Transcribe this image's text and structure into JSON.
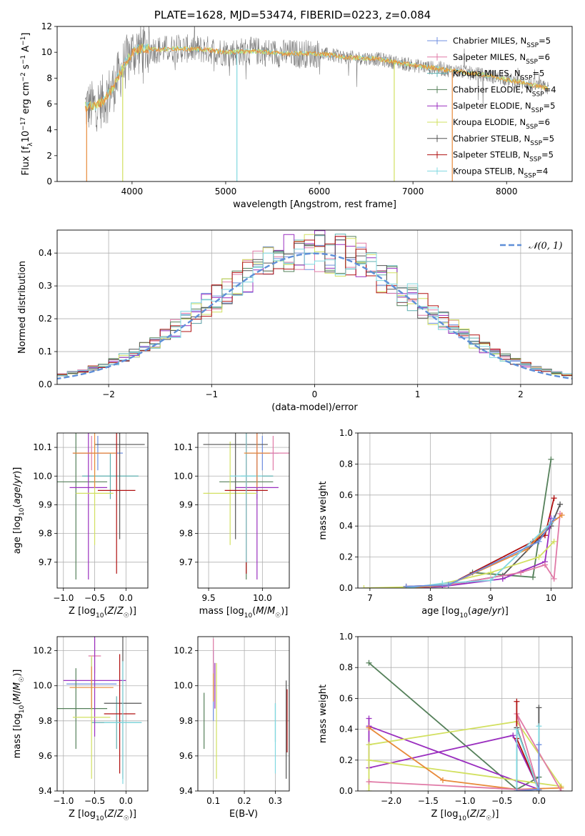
{
  "figure": {
    "title": "PLATE=1628, MJD=53474, FIBERID=0223, z=0.084"
  },
  "colors": {
    "Chabrier MILES": "#6f8fe0",
    "Salpeter MILES": "#e07aa7",
    "Kroupa MILES": "#5fb0b0",
    "Chabrier ELODIE": "#55805a",
    "Salpeter ELODIE": "#9a2fbf",
    "Kroupa ELODIE": "#d2e060",
    "Chabrier STELIB": "#555555",
    "Salpeter STELIB": "#b01010",
    "Kroupa STELIB": "#80d8e0",
    "orange_model": "#e88a3a",
    "data_grey": "#7a7a7a",
    "normal_curve": "#5f8fd8"
  },
  "chart_data": [
    {
      "type": "line",
      "title": "PLATE=1628, MJD=53474, FIBERID=0223, z=0.084",
      "xlabel": "wavelength [Angstrom, rest frame]",
      "ylabel": "Flux [fλ10⁻¹⁷ erg cm⁻² s⁻¹ A⁻¹]",
      "xlim": [
        3200,
        8700
      ],
      "ylim": [
        0,
        12
      ],
      "xticks": [
        4000,
        5000,
        6000,
        7000,
        8000
      ],
      "yticks": [
        0,
        2,
        4,
        6,
        8,
        10,
        12
      ],
      "legend_position": "top-right",
      "legend": [
        {
          "label": "Chabrier MILES, N",
          "sub": "SSP",
          "tail": "=5",
          "key": "Chabrier MILES"
        },
        {
          "label": "Salpeter MILES, N",
          "sub": "SSP",
          "tail": "=6",
          "key": "Salpeter MILES"
        },
        {
          "label": "Kroupa MILES, N",
          "sub": "SSP",
          "tail": "=5",
          "key": "Kroupa MILES"
        },
        {
          "label": "Chabrier ELODIE, N",
          "sub": "SSP",
          "tail": "=4",
          "key": "Chabrier ELODIE"
        },
        {
          "label": "Salpeter ELODIE, N",
          "sub": "SSP",
          "tail": "=5",
          "key": "Salpeter ELODIE"
        },
        {
          "label": "Kroupa ELODIE, N",
          "sub": "SSP",
          "tail": "=6",
          "key": "Kroupa ELODIE"
        },
        {
          "label": "Chabrier STELIB, N",
          "sub": "SSP",
          "tail": "=5",
          "key": "Chabrier STELIB"
        },
        {
          "label": "Salpeter STELIB, N",
          "sub": "SSP",
          "tail": "=5",
          "key": "Salpeter STELIB"
        },
        {
          "label": "Kroupa STELIB, N",
          "sub": "SSP",
          "tail": "=4",
          "key": "Kroupa STELIB"
        }
      ],
      "continuum": {
        "x": [
          3500,
          3600,
          3700,
          3800,
          3900,
          4000,
          4100,
          4300,
          4500,
          4800,
          5000,
          5300,
          5600,
          6000,
          6300,
          6600,
          7000,
          7400,
          7800,
          8200,
          8450
        ],
        "y": [
          5.8,
          5.8,
          6.3,
          7.3,
          8.8,
          10.0,
          10.3,
          10.2,
          10.3,
          10.2,
          10.0,
          10.1,
          9.9,
          9.9,
          9.6,
          9.5,
          9.0,
          8.6,
          8.2,
          7.6,
          7.2
        ]
      },
      "data_range": [
        3500,
        8450
      ]
    },
    {
      "type": "line",
      "xlabel": "(data-model)/error",
      "ylabel": "Normed distribution",
      "xlim": [
        -2.5,
        2.5
      ],
      "ylim": [
        0,
        0.47
      ],
      "xticks": [
        -2,
        -1,
        0,
        1,
        2
      ],
      "yticks": [
        0.0,
        0.1,
        0.2,
        0.3,
        0.4
      ],
      "legend_position": "top-right",
      "normal_label": "𝒩(0, 1)",
      "bin_width": 0.1,
      "series": [
        "Chabrier MILES",
        "Salpeter MILES",
        "Kroupa MILES",
        "Chabrier ELODIE",
        "Salpeter ELODIE",
        "Kroupa ELODIE",
        "Chabrier STELIB",
        "Salpeter STELIB",
        "Kroupa STELIB"
      ]
    },
    {
      "type": "scatter",
      "xlabel": "Z [log10(Z/Z☉)]",
      "ylabel": "age [log10(age/yr)]",
      "xlim": [
        -1.1,
        0.35
      ],
      "ylim": [
        9.61,
        10.15
      ],
      "xticks": [
        -1.0,
        -0.5,
        0.0
      ],
      "yticks": [
        9.7,
        9.8,
        9.9,
        10.0,
        10.1
      ],
      "points": [
        {
          "key": "Chabrier MILES",
          "x": -0.45,
          "y": 10.08,
          "xerr": 0.4,
          "yerr": 0.06
        },
        {
          "key": "Salpeter MILES",
          "x": -0.55,
          "y": 10.08,
          "xerr": 0.3,
          "yerr": 0.06
        },
        {
          "key": "Kroupa MILES",
          "x": -0.25,
          "y": 10.0,
          "xerr": 0.45,
          "yerr": 0.08
        },
        {
          "key": "Chabrier ELODIE",
          "x": -0.8,
          "y": 9.98,
          "xerr": 0.5,
          "yerr": 0.34
        },
        {
          "key": "Salpeter ELODIE",
          "x": -0.6,
          "y": 9.96,
          "xerr": 0.3,
          "yerr": 0.32
        },
        {
          "key": "Kroupa ELODIE",
          "x": -0.5,
          "y": 9.94,
          "xerr": 0.3,
          "yerr": 0.18
        },
        {
          "key": "Chabrier STELIB",
          "x": -0.1,
          "y": 10.11,
          "xerr": 0.4,
          "yerr": 0.33
        },
        {
          "key": "Salpeter STELIB",
          "x": -0.15,
          "y": 9.95,
          "xerr": 0.3,
          "yerr": 0.29
        },
        {
          "key": "orange_model",
          "x": -0.5,
          "y": 10.08,
          "xerr": 0.35,
          "yerr": 0.12
        }
      ]
    },
    {
      "type": "scatter",
      "xlabel": "mass [log10(M/M☉)]",
      "ylabel": "",
      "xlim": [
        9.4,
        10.25
      ],
      "ylim": [
        9.61,
        10.15
      ],
      "xticks": [
        9.5,
        10.0
      ],
      "yticks": [
        9.7,
        9.8,
        9.9,
        10.0,
        10.1
      ],
      "points": [
        {
          "key": "Chabrier MILES",
          "x": 10.0,
          "y": 10.08,
          "xerr": 0.15,
          "yerr": 0.06
        },
        {
          "key": "Salpeter MILES",
          "x": 10.1,
          "y": 10.08,
          "xerr": 0.15,
          "yerr": 0.06
        },
        {
          "key": "Kroupa MILES",
          "x": 9.95,
          "y": 10.0,
          "xerr": 0.15,
          "yerr": 0.08
        },
        {
          "key": "Chabrier ELODIE",
          "x": 9.85,
          "y": 9.98,
          "xerr": 0.25,
          "yerr": 0.34
        },
        {
          "key": "Salpeter ELODIE",
          "x": 9.95,
          "y": 9.96,
          "xerr": 0.2,
          "yerr": 0.32
        },
        {
          "key": "Kroupa ELODIE",
          "x": 9.7,
          "y": 9.94,
          "xerr": 0.25,
          "yerr": 0.18
        },
        {
          "key": "Chabrier STELIB",
          "x": 9.75,
          "y": 10.11,
          "xerr": 0.3,
          "yerr": 0.33
        },
        {
          "key": "Salpeter STELIB",
          "x": 9.85,
          "y": 9.95,
          "xerr": 0.2,
          "yerr": 0.29
        },
        {
          "key": "Kroupa STELIB",
          "x": 9.85,
          "y": 10.0,
          "xerr": 0.15,
          "yerr": 0.3
        },
        {
          "key": "orange_model",
          "x": 9.95,
          "y": 10.08,
          "xerr": 0.12,
          "yerr": 0.12
        }
      ]
    },
    {
      "type": "line",
      "xlabel": "age [log10(age/yr)]",
      "ylabel": "mass weight",
      "xlim": [
        6.8,
        10.35
      ],
      "ylim": [
        0,
        1.0
      ],
      "xticks": [
        7,
        8,
        9,
        10
      ],
      "yticks": [
        0.0,
        0.2,
        0.4,
        0.6,
        0.8,
        1.0
      ],
      "series": [
        {
          "key": "Chabrier ELODIE",
          "x": [
            7.6,
            8.3,
            8.7,
            9.7,
            10.0
          ],
          "y": [
            0.0,
            0.02,
            0.1,
            0.07,
            0.83
          ]
        },
        {
          "key": "Chabrier STELIB",
          "x": [
            7.6,
            8.3,
            9.2,
            10.0,
            10.15
          ],
          "y": [
            0.0,
            0.02,
            0.08,
            0.4,
            0.54
          ]
        },
        {
          "key": "Salpeter STELIB",
          "x": [
            7.6,
            8.3,
            9.7,
            9.9,
            10.05
          ],
          "y": [
            0.01,
            0.02,
            0.3,
            0.34,
            0.58
          ]
        },
        {
          "key": "Salpeter ELODIE",
          "x": [
            7.6,
            8.2,
            9.2,
            9.9,
            10.0
          ],
          "y": [
            0.0,
            0.01,
            0.06,
            0.17,
            0.45
          ]
        },
        {
          "key": "Kroupa ELODIE",
          "x": [
            6.9,
            8.0,
            9.0,
            9.8,
            10.05
          ],
          "y": [
            0.0,
            0.01,
            0.1,
            0.2,
            0.3
          ]
        },
        {
          "key": "Salpeter MILES",
          "x": [
            7.6,
            8.3,
            9.5,
            9.9,
            10.05,
            10.15
          ],
          "y": [
            0.0,
            0.02,
            0.1,
            0.15,
            0.06,
            0.48
          ]
        },
        {
          "key": "orange_model",
          "x": [
            7.6,
            8.3,
            9.6,
            10.0,
            10.18
          ],
          "y": [
            0.0,
            0.02,
            0.25,
            0.42,
            0.47
          ]
        },
        {
          "key": "Kroupa STELIB",
          "x": [
            7.6,
            8.2,
            9.0,
            10.0
          ],
          "y": [
            0.0,
            0.03,
            0.05,
            0.42
          ]
        },
        {
          "key": "Chabrier MILES",
          "x": [
            7.6,
            8.3,
            9.8,
            10.05
          ],
          "y": [
            0.01,
            0.02,
            0.3,
            0.45
          ]
        }
      ]
    },
    {
      "type": "scatter",
      "xlabel": "Z [log10(Z/Z☉)]",
      "ylabel": "mass [log10(M/M☉)]",
      "xlim": [
        -1.1,
        0.35
      ],
      "ylim": [
        9.4,
        10.28
      ],
      "xticks": [
        -1.0,
        -0.5,
        0.0
      ],
      "yticks": [
        9.4,
        9.6,
        9.8,
        10.0,
        10.2
      ],
      "points": [
        {
          "key": "Chabrier MILES",
          "x": -0.55,
          "y": 10.01,
          "xerr": 0.4,
          "yerr": 0.15
        },
        {
          "key": "Salpeter MILES",
          "x": -0.5,
          "y": 10.17,
          "xerr": 0.1,
          "yerr": 0.1
        },
        {
          "key": "Kroupa MILES",
          "x": -0.15,
          "y": 9.79,
          "xerr": 0.4,
          "yerr": 0.15
        },
        {
          "key": "Chabrier ELODIE",
          "x": -0.8,
          "y": 9.87,
          "xerr": 0.5,
          "yerr": 0.23
        },
        {
          "key": "Salpeter ELODIE",
          "x": -0.5,
          "y": 10.03,
          "xerr": 0.5,
          "yerr": 0.32
        },
        {
          "key": "Kroupa ELODIE",
          "x": -0.55,
          "y": 9.82,
          "xerr": 0.3,
          "yerr": 0.35
        },
        {
          "key": "Chabrier STELIB",
          "x": -0.05,
          "y": 9.9,
          "xerr": 0.3,
          "yerr": 0.43
        },
        {
          "key": "Salpeter STELIB",
          "x": -0.1,
          "y": 9.84,
          "xerr": 0.25,
          "yerr": 0.34
        },
        {
          "key": "Kroupa STELIB",
          "x": -0.05,
          "y": 9.79,
          "xerr": 0.3,
          "yerr": 0.35
        },
        {
          "key": "orange_model",
          "x": -0.55,
          "y": 9.99,
          "xerr": 0.35,
          "yerr": 0.12
        }
      ]
    },
    {
      "type": "scatter",
      "xlabel": "E(B-V)",
      "ylabel": "",
      "xlim": [
        0.05,
        0.345
      ],
      "ylim": [
        9.4,
        10.28
      ],
      "xticks": [
        0.1,
        0.2,
        0.3
      ],
      "yticks": [
        9.4,
        9.6,
        9.8,
        10.0,
        10.2
      ],
      "points": [
        {
          "key": "Chabrier MILES",
          "x": 0.1,
          "y": 10.0,
          "yerr": 0.2
        },
        {
          "key": "Salpeter MILES",
          "x": 0.1,
          "y": 10.17,
          "yerr": 0.1
        },
        {
          "key": "Kroupa MILES",
          "x": 0.3,
          "y": 9.79,
          "yerr": 0.11
        },
        {
          "key": "Chabrier ELODIE",
          "x": 0.07,
          "y": 9.8,
          "yerr": 0.16
        },
        {
          "key": "Salpeter ELODIE",
          "x": 0.105,
          "y": 10.0,
          "yerr": 0.13
        },
        {
          "key": "Kroupa ELODIE",
          "x": 0.11,
          "y": 9.8,
          "yerr": 0.33
        },
        {
          "key": "Chabrier STELIB",
          "x": 0.335,
          "y": 9.75,
          "yerr": 0.28
        },
        {
          "key": "Salpeter STELIB",
          "x": 0.338,
          "y": 9.8,
          "yerr": 0.18
        },
        {
          "key": "Kroupa STELIB",
          "x": 0.3,
          "y": 9.7,
          "yerr": 0.2
        },
        {
          "key": "orange_model",
          "x": 0.1,
          "y": 9.99,
          "yerr": 0.08
        }
      ]
    },
    {
      "type": "line",
      "xlabel": "Z [log10(Z/Z☉)]",
      "ylabel": "mass weight",
      "xlim": [
        -2.45,
        0.45
      ],
      "ylim": [
        0,
        1.0
      ],
      "xticks": [
        -2.0,
        -1.5,
        -1.0,
        -0.5,
        0.0
      ],
      "yticks": [
        0.0,
        0.2,
        0.4,
        0.6,
        0.8,
        1.0
      ],
      "series": [
        {
          "key": "Chabrier ELODIE",
          "x": [
            -2.3,
            -0.3,
            0.0
          ],
          "y": [
            0.83,
            0.01,
            0.09
          ]
        },
        {
          "key": "Salpeter ELODIE",
          "x": [
            -2.3,
            -2.3,
            -0.35,
            0.0,
            -2.3
          ],
          "y": [
            0.47,
            0.15,
            0.36,
            0.01,
            0.42
          ]
        },
        {
          "key": "Kroupa ELODIE",
          "x": [
            -2.3,
            -2.3,
            -0.3,
            0.3,
            -2.3
          ],
          "y": [
            0.0,
            0.3,
            0.45,
            0.03,
            0.2
          ]
        },
        {
          "key": "orange_model",
          "x": [
            -2.3,
            -1.3,
            -0.3,
            0.3
          ],
          "y": [
            0.41,
            0.07,
            0.01,
            0.02
          ]
        },
        {
          "key": "Salpeter MILES",
          "x": [
            -2.3,
            -0.3,
            0.0,
            -0.3,
            0.3
          ],
          "y": [
            0.06,
            0.01,
            0.01,
            0.5,
            0.0
          ]
        },
        {
          "key": "Chabrier STELIB",
          "x": [
            -0.3,
            -0.3,
            0.0,
            0.0
          ],
          "y": [
            0.0,
            0.41,
            0.0,
            0.54
          ]
        },
        {
          "key": "Salpeter STELIB",
          "x": [
            -0.3,
            -0.3,
            0.0,
            0.0
          ],
          "y": [
            0.58,
            0.34,
            0.01,
            0.0
          ]
        },
        {
          "key": "Kroupa STELIB",
          "x": [
            -0.3,
            -0.3,
            0.0,
            0.0
          ],
          "y": [
            0.0,
            0.4,
            0.0,
            0.42
          ]
        },
        {
          "key": "Chabrier MILES",
          "x": [
            -0.3,
            0.0,
            0.0
          ],
          "y": [
            0.0,
            0.01,
            0.3
          ]
        }
      ]
    }
  ]
}
